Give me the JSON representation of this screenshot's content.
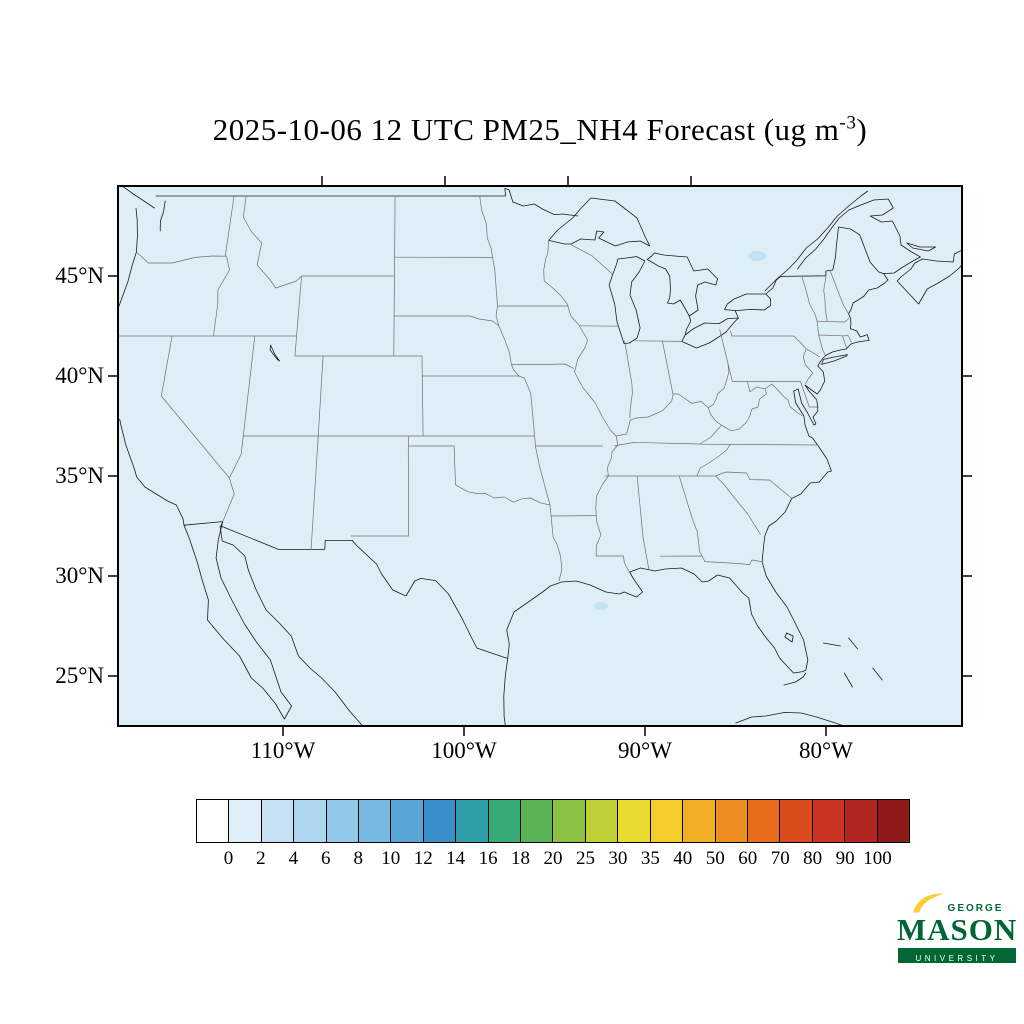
{
  "title": {
    "prefix": "2025-10-06 12 UTC PM25_NH4 Forecast (ug m",
    "superscript": "-3",
    "suffix": ")"
  },
  "axes": {
    "lat_labels": [
      "45°N",
      "40°N",
      "35°N",
      "30°N",
      "25°N"
    ],
    "lon_labels": [
      "110°W",
      "100°W",
      "90°W",
      "80°W"
    ]
  },
  "map": {
    "fill_color": "#DDEEF7",
    "hotspot_color": "#C2E1F2",
    "hotspots": [
      [
        -76.3,
        46.0,
        9,
        5
      ],
      [
        -91.6,
        28.5,
        7,
        4
      ]
    ]
  },
  "colorbar": {
    "labels": [
      "0",
      "2",
      "4",
      "6",
      "8",
      "10",
      "12",
      "14",
      "16",
      "18",
      "20",
      "25",
      "30",
      "35",
      "40",
      "50",
      "60",
      "70",
      "80",
      "90",
      "100"
    ],
    "colors": [
      "#FFFFFF",
      "#DDEEF7",
      "#C6E2F2",
      "#ADD7EE",
      "#93C9E8",
      "#77B9E0",
      "#58A6D7",
      "#3B8FC8",
      "#2E9EA8",
      "#36AB75",
      "#57B353",
      "#8BC043",
      "#C0CF35",
      "#E8DB2D",
      "#F6CE2B",
      "#F3AE27",
      "#EE8E20",
      "#E66C1A",
      "#DA4B1B",
      "#C93420",
      "#B22622",
      "#8E1A1A"
    ]
  },
  "logo": {
    "george": "GEORGE",
    "mason": "MASON",
    "university": "UNIVERSITY",
    "green": "#006633",
    "gold": "#FFCC33"
  }
}
